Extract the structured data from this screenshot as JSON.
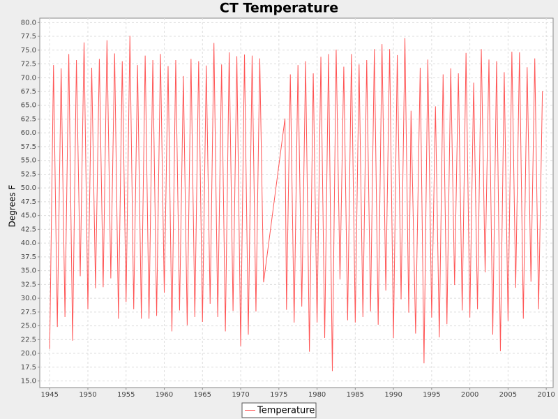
{
  "chart_data": {
    "type": "line",
    "title": "CT Temperature",
    "y_label": "Degrees F",
    "x": [
      1945,
      1945.5,
      1946,
      1946.5,
      1947,
      1947.5,
      1948,
      1948.5,
      1949,
      1949.5,
      1950,
      1950.5,
      1951,
      1951.5,
      1952,
      1952.5,
      1953,
      1953.5,
      1954,
      1954.5,
      1955,
      1955.5,
      1956,
      1956.5,
      1957,
      1957.5,
      1958,
      1958.5,
      1959,
      1959.5,
      1960,
      1960.5,
      1961,
      1961.5,
      1962,
      1962.5,
      1963,
      1963.5,
      1964,
      1964.5,
      1965,
      1965.5,
      1966,
      1966.5,
      1967,
      1967.5,
      1968,
      1968.5,
      1969,
      1969.5,
      1970,
      1970.5,
      1971,
      1971.5,
      1972,
      1972.5,
      1973,
      1975.8,
      1976,
      1976.5,
      1977,
      1977.5,
      1978,
      1978.5,
      1979,
      1979.5,
      1980,
      1980.5,
      1981,
      1981.5,
      1982,
      1982.5,
      1983,
      1983.5,
      1984,
      1984.5,
      1985,
      1985.5,
      1986,
      1986.5,
      1987,
      1987.5,
      1988,
      1988.5,
      1989,
      1989.5,
      1990,
      1990.5,
      1991,
      1991.5,
      1992,
      1992.3,
      1992.9,
      1993.5,
      1994,
      1994.5,
      1995,
      1995.5,
      1996,
      1996.5,
      1997,
      1997.5,
      1998,
      1998.5,
      1999,
      1999.5,
      2000,
      2000.5,
      2001,
      2001.5,
      2002,
      2002.5,
      2003,
      2003.5,
      2004,
      2004.5,
      2005,
      2005.5,
      2006,
      2006.5,
      2007,
      2007.5,
      2008,
      2008.5,
      2009,
      2009.5
    ],
    "series": [
      {
        "name": "Temperature",
        "color": "#ff5555",
        "values": [
          20.8,
          72.3,
          24.8,
          71.7,
          26.6,
          74.3,
          22.3,
          73.2,
          34.0,
          76.4,
          28.0,
          71.8,
          31.8,
          73.4,
          32.0,
          76.8,
          33.6,
          74.4,
          26.3,
          73.0,
          29.3,
          77.6,
          28.0,
          72.3,
          26.3,
          74.0,
          26.3,
          73.2,
          26.8,
          74.3,
          31.0,
          72.1,
          24.0,
          73.2,
          27.8,
          70.3,
          25.1,
          73.4,
          26.6,
          73.0,
          25.7,
          72.2,
          29.0,
          76.3,
          26.6,
          72.4,
          24.0,
          74.6,
          27.7,
          73.9,
          21.3,
          74.2,
          23.4,
          74.0,
          27.6,
          73.5,
          32.9,
          62.6,
          27.9,
          70.6,
          25.6,
          72.3,
          28.5,
          73.0,
          20.3,
          70.8,
          25.6,
          73.8,
          22.8,
          74.3,
          16.8,
          75.1,
          33.4,
          72.0,
          26.0,
          74.3,
          25.6,
          72.4,
          26.6,
          73.2,
          27.6,
          75.2,
          25.2,
          76.1,
          31.4,
          75.2,
          22.8,
          74.1,
          29.8,
          77.2,
          27.4,
          64.0,
          23.6,
          71.8,
          18.2,
          73.3,
          26.5,
          64.8,
          22.9,
          70.6,
          25.3,
          71.7,
          32.4,
          70.8,
          27.8,
          74.5,
          26.5,
          69.1,
          28.0,
          75.2,
          34.7,
          73.3,
          23.4,
          73.0,
          20.4,
          71.0,
          25.9,
          74.7,
          31.9,
          74.6,
          26.3,
          71.9,
          33.0,
          73.5,
          28.0,
          67.6
        ]
      }
    ],
    "xlim": [
      1943.7,
      2010.9
    ],
    "xticks": [
      1945,
      1950,
      1955,
      1960,
      1965,
      1970,
      1975,
      1980,
      1985,
      1990,
      1995,
      2000,
      2005,
      2010
    ],
    "ylim": [
      13.8,
      80.8
    ],
    "yticks": [
      {
        "value": 15,
        "label": "15.0"
      },
      {
        "value": 17.5,
        "label": "17.5"
      },
      {
        "value": 20,
        "label": "20.0"
      },
      {
        "value": 22.5,
        "label": "22.5"
      },
      {
        "value": 25,
        "label": "25.0"
      },
      {
        "value": 27.5,
        "label": "27.5"
      },
      {
        "value": 30,
        "label": "30.0"
      },
      {
        "value": 32.5,
        "label": "32.5"
      },
      {
        "value": 35,
        "label": "35.0"
      },
      {
        "value": 37.5,
        "label": "37.5"
      },
      {
        "value": 40,
        "label": "40.0"
      },
      {
        "value": 42.5,
        "label": "42.5"
      },
      {
        "value": 45,
        "label": "45.0"
      },
      {
        "value": 47.5,
        "label": "47.5"
      },
      {
        "value": 50,
        "label": "50.0"
      },
      {
        "value": 52.5,
        "label": "52.5"
      },
      {
        "value": 55,
        "label": "55.0"
      },
      {
        "value": 57.5,
        "label": "57.5"
      },
      {
        "value": 60,
        "label": "60.0"
      },
      {
        "value": 62.5,
        "label": "62.5"
      },
      {
        "value": 65,
        "label": "65.0"
      },
      {
        "value": 67.5,
        "label": "67.5"
      },
      {
        "value": 70,
        "label": "70.0"
      },
      {
        "value": 72.5,
        "label": "72.5"
      },
      {
        "value": 75,
        "label": "75.0"
      },
      {
        "value": 77.5,
        "label": "77.5"
      },
      {
        "value": 80,
        "label": "80.0"
      }
    ],
    "grid": true
  }
}
